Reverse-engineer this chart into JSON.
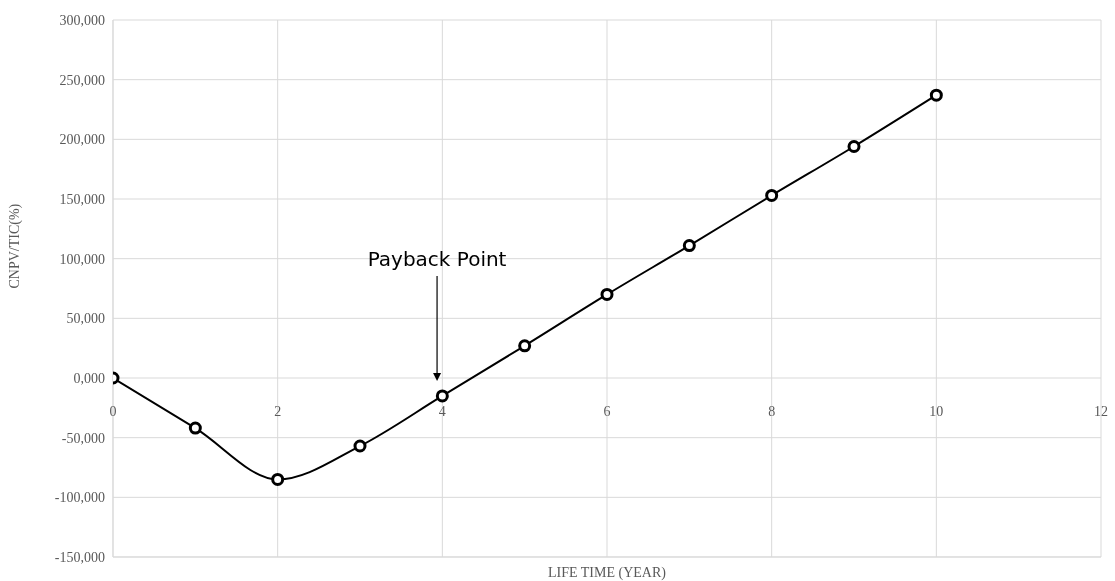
{
  "chart_data": {
    "type": "line",
    "xlabel": "LIFE TIME (YEAR)",
    "ylabel": "CNPV/TIC(%)",
    "x": [
      0,
      1,
      2,
      3,
      4,
      5,
      6,
      7,
      8,
      9,
      10
    ],
    "series": [
      {
        "color": "#000000",
        "values": [
          0,
          -42000,
          -85000,
          -57000,
          -15000,
          27000,
          70000,
          111000,
          153000,
          194000,
          237000
        ]
      }
    ],
    "xlim": [
      0,
      12
    ],
    "xticks": [
      0,
      2,
      4,
      6,
      8,
      10,
      12
    ],
    "ylim": [
      -150000,
      300000
    ],
    "yticks": [
      {
        "value": -150000,
        "label": "-150,000"
      },
      {
        "value": -100000,
        "label": "-100,000"
      },
      {
        "value": -50000,
        "label": "-50,000"
      },
      {
        "value": 0,
        "label": "0,000"
      },
      {
        "value": 50000,
        "label": "50,000"
      },
      {
        "value": 100000,
        "label": "100,000"
      },
      {
        "value": 150000,
        "label": "150,000"
      },
      {
        "value": 200000,
        "label": "200,000"
      },
      {
        "value": 250000,
        "label": "250,000"
      },
      {
        "value": 300000,
        "label": "300,000"
      }
    ],
    "grid": true,
    "marker": "circle",
    "line_style": "solid",
    "legend": false,
    "annotations": [
      "Payback Point"
    ]
  }
}
